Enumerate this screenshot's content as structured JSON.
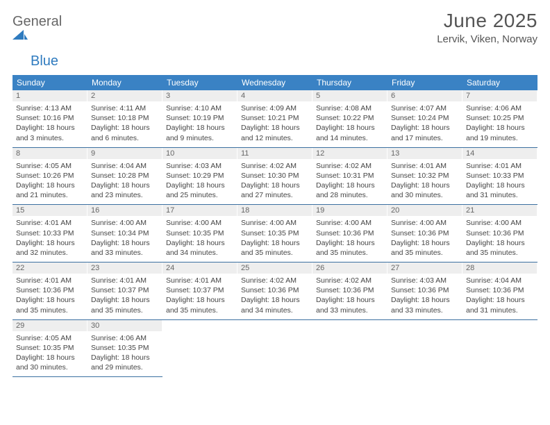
{
  "logo": {
    "word1": "General",
    "word2": "Blue",
    "shape_color": "#2f7bbf"
  },
  "title": "June 2025",
  "location": "Lervik, Viken, Norway",
  "colors": {
    "header_bg": "#3a82c4",
    "header_fg": "#ffffff",
    "daynum_bg": "#eeeeee",
    "row_divider": "#3a6fa0",
    "text": "#444444"
  },
  "day_headers": [
    "Sunday",
    "Monday",
    "Tuesday",
    "Wednesday",
    "Thursday",
    "Friday",
    "Saturday"
  ],
  "weeks": [
    [
      {
        "n": "1",
        "sunrise": "4:13 AM",
        "sunset": "10:16 PM",
        "daylight": "18 hours and 3 minutes."
      },
      {
        "n": "2",
        "sunrise": "4:11 AM",
        "sunset": "10:18 PM",
        "daylight": "18 hours and 6 minutes."
      },
      {
        "n": "3",
        "sunrise": "4:10 AM",
        "sunset": "10:19 PM",
        "daylight": "18 hours and 9 minutes."
      },
      {
        "n": "4",
        "sunrise": "4:09 AM",
        "sunset": "10:21 PM",
        "daylight": "18 hours and 12 minutes."
      },
      {
        "n": "5",
        "sunrise": "4:08 AM",
        "sunset": "10:22 PM",
        "daylight": "18 hours and 14 minutes."
      },
      {
        "n": "6",
        "sunrise": "4:07 AM",
        "sunset": "10:24 PM",
        "daylight": "18 hours and 17 minutes."
      },
      {
        "n": "7",
        "sunrise": "4:06 AM",
        "sunset": "10:25 PM",
        "daylight": "18 hours and 19 minutes."
      }
    ],
    [
      {
        "n": "8",
        "sunrise": "4:05 AM",
        "sunset": "10:26 PM",
        "daylight": "18 hours and 21 minutes."
      },
      {
        "n": "9",
        "sunrise": "4:04 AM",
        "sunset": "10:28 PM",
        "daylight": "18 hours and 23 minutes."
      },
      {
        "n": "10",
        "sunrise": "4:03 AM",
        "sunset": "10:29 PM",
        "daylight": "18 hours and 25 minutes."
      },
      {
        "n": "11",
        "sunrise": "4:02 AM",
        "sunset": "10:30 PM",
        "daylight": "18 hours and 27 minutes."
      },
      {
        "n": "12",
        "sunrise": "4:02 AM",
        "sunset": "10:31 PM",
        "daylight": "18 hours and 28 minutes."
      },
      {
        "n": "13",
        "sunrise": "4:01 AM",
        "sunset": "10:32 PM",
        "daylight": "18 hours and 30 minutes."
      },
      {
        "n": "14",
        "sunrise": "4:01 AM",
        "sunset": "10:33 PM",
        "daylight": "18 hours and 31 minutes."
      }
    ],
    [
      {
        "n": "15",
        "sunrise": "4:01 AM",
        "sunset": "10:33 PM",
        "daylight": "18 hours and 32 minutes."
      },
      {
        "n": "16",
        "sunrise": "4:00 AM",
        "sunset": "10:34 PM",
        "daylight": "18 hours and 33 minutes."
      },
      {
        "n": "17",
        "sunrise": "4:00 AM",
        "sunset": "10:35 PM",
        "daylight": "18 hours and 34 minutes."
      },
      {
        "n": "18",
        "sunrise": "4:00 AM",
        "sunset": "10:35 PM",
        "daylight": "18 hours and 35 minutes."
      },
      {
        "n": "19",
        "sunrise": "4:00 AM",
        "sunset": "10:36 PM",
        "daylight": "18 hours and 35 minutes."
      },
      {
        "n": "20",
        "sunrise": "4:00 AM",
        "sunset": "10:36 PM",
        "daylight": "18 hours and 35 minutes."
      },
      {
        "n": "21",
        "sunrise": "4:00 AM",
        "sunset": "10:36 PM",
        "daylight": "18 hours and 35 minutes."
      }
    ],
    [
      {
        "n": "22",
        "sunrise": "4:01 AM",
        "sunset": "10:36 PM",
        "daylight": "18 hours and 35 minutes."
      },
      {
        "n": "23",
        "sunrise": "4:01 AM",
        "sunset": "10:37 PM",
        "daylight": "18 hours and 35 minutes."
      },
      {
        "n": "24",
        "sunrise": "4:01 AM",
        "sunset": "10:37 PM",
        "daylight": "18 hours and 35 minutes."
      },
      {
        "n": "25",
        "sunrise": "4:02 AM",
        "sunset": "10:36 PM",
        "daylight": "18 hours and 34 minutes."
      },
      {
        "n": "26",
        "sunrise": "4:02 AM",
        "sunset": "10:36 PM",
        "daylight": "18 hours and 33 minutes."
      },
      {
        "n": "27",
        "sunrise": "4:03 AM",
        "sunset": "10:36 PM",
        "daylight": "18 hours and 33 minutes."
      },
      {
        "n": "28",
        "sunrise": "4:04 AM",
        "sunset": "10:36 PM",
        "daylight": "18 hours and 31 minutes."
      }
    ],
    [
      {
        "n": "29",
        "sunrise": "4:05 AM",
        "sunset": "10:35 PM",
        "daylight": "18 hours and 30 minutes."
      },
      {
        "n": "30",
        "sunrise": "4:06 AM",
        "sunset": "10:35 PM",
        "daylight": "18 hours and 29 minutes."
      },
      null,
      null,
      null,
      null,
      null
    ]
  ],
  "labels": {
    "sunrise": "Sunrise:",
    "sunset": "Sunset:",
    "daylight": "Daylight:"
  }
}
